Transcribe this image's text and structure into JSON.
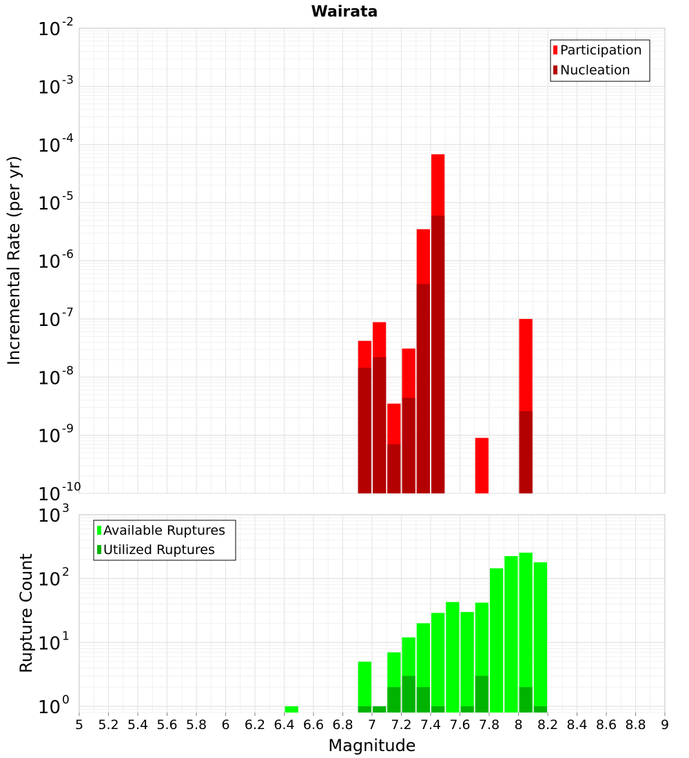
{
  "chart_data": [
    {
      "type": "bar",
      "title": "Wairata",
      "xlabel": "",
      "ylabel": "Incremental Rate (per yr)",
      "xlim": [
        5,
        9
      ],
      "ylim": [
        1e-10,
        0.01
      ],
      "yscale": "log",
      "bar_width": 0.1,
      "grid": true,
      "legend_position": "top-right",
      "y_ticks": [
        {
          "value": 0.01,
          "base": "10",
          "exp": "-2"
        },
        {
          "value": 0.001,
          "base": "10",
          "exp": "-3"
        },
        {
          "value": 0.0001,
          "base": "10",
          "exp": "-4"
        },
        {
          "value": 1e-05,
          "base": "10",
          "exp": "-5"
        },
        {
          "value": 1e-06,
          "base": "10",
          "exp": "-6"
        },
        {
          "value": 1e-07,
          "base": "10",
          "exp": "-7"
        },
        {
          "value": 1e-08,
          "base": "10",
          "exp": "-8"
        },
        {
          "value": 1e-09,
          "base": "10",
          "exp": "-9"
        },
        {
          "value": 1e-10,
          "base": "10",
          "exp": "-10"
        }
      ],
      "series": [
        {
          "name": "Participation",
          "color": "#ff0000",
          "points": [
            {
              "x": 6.95,
              "y": 4.2e-08
            },
            {
              "x": 7.05,
              "y": 8.8e-08
            },
            {
              "x": 7.15,
              "y": 3.5e-09
            },
            {
              "x": 7.25,
              "y": 3.1e-08
            },
            {
              "x": 7.35,
              "y": 3.5e-06
            },
            {
              "x": 7.45,
              "y": 6.8e-05
            },
            {
              "x": 7.75,
              "y": 9e-10
            },
            {
              "x": 8.05,
              "y": 1e-07
            }
          ]
        },
        {
          "name": "Nucleation",
          "color": "#b30000",
          "points": [
            {
              "x": 6.95,
              "y": 1.45e-08
            },
            {
              "x": 7.05,
              "y": 2.2e-08
            },
            {
              "x": 7.15,
              "y": 7e-10
            },
            {
              "x": 7.25,
              "y": 4.4e-09
            },
            {
              "x": 7.35,
              "y": 4e-07
            },
            {
              "x": 7.45,
              "y": 6e-06
            },
            {
              "x": 8.05,
              "y": 2.6e-09
            }
          ]
        }
      ]
    },
    {
      "type": "bar",
      "title": "",
      "xlabel": "Magnitude",
      "ylabel": "Rupture Count",
      "xlim": [
        5,
        9
      ],
      "ylim": [
        0.8,
        1000
      ],
      "yscale": "log",
      "bar_width": 0.1,
      "grid": true,
      "legend_position": "top-left",
      "x_ticks": [
        "5",
        "5.2",
        "5.4",
        "5.6",
        "5.8",
        "6",
        "6.2",
        "6.4",
        "6.6",
        "6.8",
        "7",
        "7.2",
        "7.4",
        "7.6",
        "7.8",
        "8",
        "8.2",
        "8.4",
        "8.6",
        "8.8",
        "9"
      ],
      "y_ticks": [
        {
          "value": 1000,
          "base": "10",
          "exp": "3"
        },
        {
          "value": 100,
          "base": "10",
          "exp": "2"
        },
        {
          "value": 10,
          "base": "10",
          "exp": "1"
        },
        {
          "value": 1,
          "base": "10",
          "exp": "0"
        }
      ],
      "series": [
        {
          "name": "Available Ruptures",
          "color": "#00ff00",
          "points": [
            {
              "x": 6.45,
              "y": 1
            },
            {
              "x": 6.95,
              "y": 5
            },
            {
              "x": 7.05,
              "y": 1
            },
            {
              "x": 7.15,
              "y": 7
            },
            {
              "x": 7.25,
              "y": 12
            },
            {
              "x": 7.35,
              "y": 20
            },
            {
              "x": 7.45,
              "y": 29
            },
            {
              "x": 7.55,
              "y": 43
            },
            {
              "x": 7.65,
              "y": 30
            },
            {
              "x": 7.75,
              "y": 42
            },
            {
              "x": 7.85,
              "y": 145
            },
            {
              "x": 7.95,
              "y": 225
            },
            {
              "x": 8.05,
              "y": 255
            },
            {
              "x": 8.15,
              "y": 180
            }
          ]
        },
        {
          "name": "Utilized Ruptures",
          "color": "#00b300",
          "points": [
            {
              "x": 6.95,
              "y": 1
            },
            {
              "x": 7.05,
              "y": 1
            },
            {
              "x": 7.15,
              "y": 2
            },
            {
              "x": 7.25,
              "y": 3
            },
            {
              "x": 7.35,
              "y": 2
            },
            {
              "x": 7.45,
              "y": 1
            },
            {
              "x": 7.65,
              "y": 1
            },
            {
              "x": 7.75,
              "y": 3
            },
            {
              "x": 8.05,
              "y": 2
            },
            {
              "x": 8.15,
              "y": 1
            }
          ]
        }
      ]
    }
  ]
}
